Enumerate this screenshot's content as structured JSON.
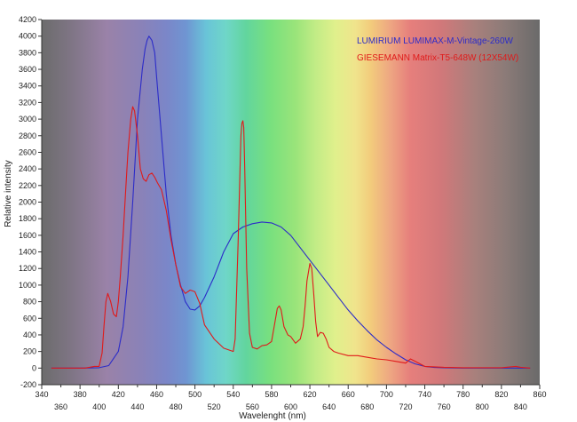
{
  "chart_data": {
    "type": "line",
    "title": "",
    "xlabel": "Wavelenght (nm)",
    "ylabel": "Relative intensity",
    "xlim": [
      340,
      860
    ],
    "ylim": [
      -200,
      4200
    ],
    "grid": false,
    "legend_position": "top-right",
    "background": "visible-spectrum gradient",
    "x_ticks_row1": [
      "340",
      "380",
      "420",
      "460",
      "500",
      "540",
      "580",
      "620",
      "660",
      "700",
      "740",
      "780",
      "820",
      "860"
    ],
    "x_ticks_row2": [
      "360",
      "400",
      "440",
      "480",
      "520",
      "560",
      "600",
      "640",
      "680",
      "720",
      "760",
      "800",
      "840"
    ],
    "y_ticks": [
      "-200",
      "0",
      "200",
      "400",
      "600",
      "800",
      "1000",
      "1200",
      "1400",
      "1600",
      "1800",
      "2000",
      "2200",
      "2400",
      "2600",
      "2800",
      "3000",
      "3200",
      "3400",
      "3600",
      "3800",
      "4000",
      "4200"
    ],
    "series": [
      {
        "name": "LUMIRIUM LUMIMAX-M-Vintage-260W",
        "color": "#2c2cc8",
        "x": [
          350,
          380,
          400,
          410,
          420,
          425,
          430,
          435,
          440,
          445,
          448,
          450,
          452,
          455,
          458,
          460,
          465,
          470,
          475,
          480,
          485,
          490,
          495,
          500,
          505,
          510,
          520,
          530,
          540,
          550,
          560,
          570,
          580,
          590,
          600,
          610,
          620,
          630,
          640,
          650,
          660,
          670,
          680,
          690,
          700,
          710,
          720,
          730,
          740,
          750,
          760,
          780,
          800,
          820,
          840,
          850
        ],
        "y": [
          0,
          0,
          5,
          30,
          200,
          500,
          1100,
          2000,
          3000,
          3600,
          3850,
          3950,
          4000,
          3950,
          3800,
          3500,
          2800,
          2100,
          1600,
          1250,
          1000,
          800,
          710,
          700,
          750,
          850,
          1100,
          1400,
          1620,
          1700,
          1740,
          1760,
          1750,
          1700,
          1600,
          1450,
          1300,
          1150,
          1000,
          850,
          700,
          570,
          450,
          340,
          250,
          170,
          100,
          50,
          20,
          8,
          3,
          0,
          0,
          0,
          0,
          0
        ]
      },
      {
        "name": "GIESEMANN Matrix-T5-648W (12X54W)",
        "color": "#e01a1a",
        "x": [
          350,
          385,
          390,
          395,
          400,
          403,
          405,
          407,
          409,
          412,
          415,
          418,
          420,
          422,
          425,
          428,
          430,
          433,
          435,
          437,
          440,
          443,
          446,
          449,
          452,
          455,
          458,
          461,
          465,
          470,
          475,
          480,
          485,
          490,
          495,
          500,
          505,
          510,
          520,
          530,
          540,
          542,
          545,
          548,
          549,
          550,
          551,
          552,
          554,
          557,
          560,
          565,
          570,
          575,
          580,
          583,
          586,
          588,
          590,
          593,
          597,
          600,
          605,
          610,
          613,
          615,
          617,
          620,
          622,
          624,
          626,
          628,
          631,
          634,
          637,
          640,
          645,
          650,
          660,
          670,
          680,
          690,
          700,
          710,
          720,
          725,
          730,
          740,
          760,
          780,
          800,
          820,
          835,
          840,
          850
        ],
        "y": [
          0,
          0,
          10,
          20,
          20,
          180,
          500,
          800,
          900,
          800,
          650,
          620,
          800,
          1100,
          1600,
          2200,
          2600,
          3000,
          3150,
          3100,
          2800,
          2400,
          2280,
          2250,
          2330,
          2350,
          2300,
          2230,
          2150,
          1900,
          1550,
          1250,
          980,
          900,
          940,
          920,
          780,
          520,
          350,
          240,
          200,
          350,
          1500,
          2800,
          2950,
          2980,
          2900,
          2400,
          1200,
          420,
          250,
          230,
          270,
          280,
          320,
          520,
          720,
          750,
          700,
          500,
          400,
          380,
          300,
          350,
          500,
          750,
          1050,
          1260,
          1200,
          900,
          560,
          380,
          430,
          420,
          350,
          250,
          200,
          180,
          150,
          150,
          130,
          110,
          100,
          80,
          60,
          110,
          80,
          20,
          10,
          5,
          5,
          5,
          20,
          10,
          0
        ]
      }
    ]
  }
}
